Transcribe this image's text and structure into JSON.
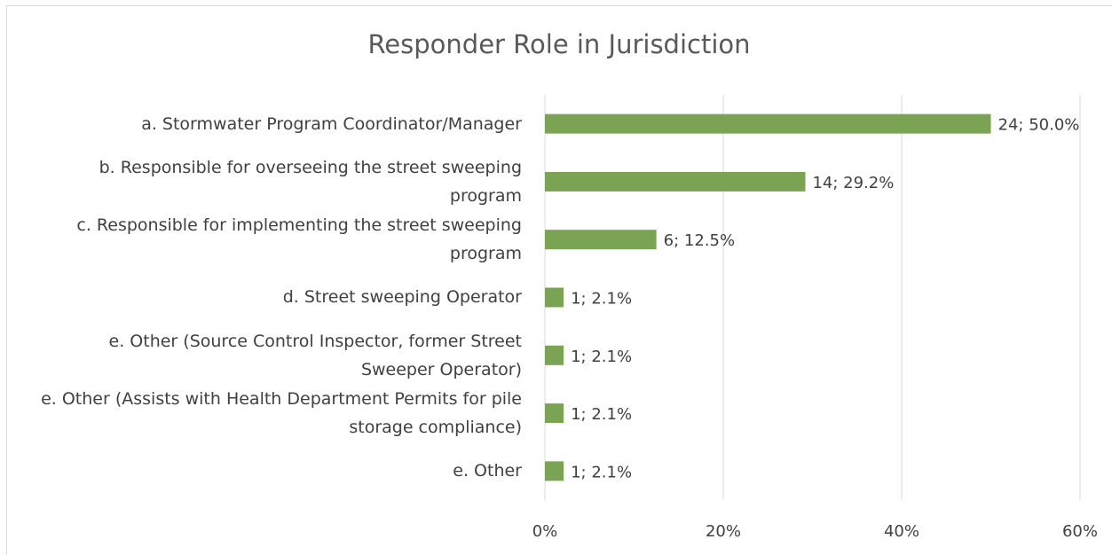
{
  "chart_data": {
    "type": "bar",
    "orientation": "horizontal",
    "title": "Responder Role in Jurisdiction",
    "categories": [
      "a. Stormwater Program Coordinator/Manager",
      "b. Responsible for overseeing the street sweeping program",
      "c. Responsible for implementing the street sweeping program",
      "d. Street sweeping Operator",
      "e. Other (Source Control Inspector, former Street Sweeper Operator)",
      "e. Other (Assists with Health Department Permits for pile storage compliance)",
      "e. Other"
    ],
    "values": [
      50.0,
      29.2,
      12.5,
      2.1,
      2.1,
      2.1,
      2.1
    ],
    "value_labels": [
      "24; 50.0%",
      "14; 29.2%",
      "6; 12.5%",
      "1; 2.1%",
      "1; 2.1%",
      "1; 2.1%",
      "1; 2.1%"
    ],
    "color": "#7aa354",
    "xlim": [
      0,
      60
    ],
    "xticks": [
      {
        "value": 0,
        "label": "0%"
      },
      {
        "value": 20,
        "label": "20%"
      },
      {
        "value": 40,
        "label": "40%"
      },
      {
        "value": 60,
        "label": "60%"
      }
    ],
    "grid": true
  }
}
